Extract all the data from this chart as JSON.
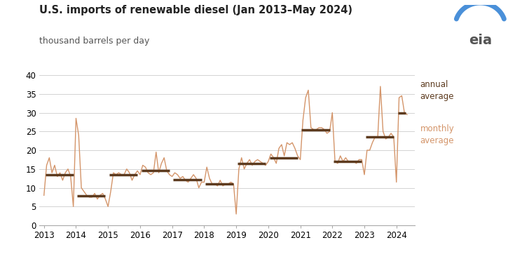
{
  "title": "U.S. imports of renewable diesel (Jan 2013–May 2024)",
  "subtitle": "thousand barrels per day",
  "line_color": "#D4956A",
  "annual_avg_color": "#5C3A1E",
  "background_color": "#FFFFFF",
  "ylim": [
    0,
    40
  ],
  "yticks": [
    0,
    5,
    10,
    15,
    20,
    25,
    30,
    35,
    40
  ],
  "xticks": [
    2013,
    2014,
    2015,
    2016,
    2017,
    2018,
    2019,
    2020,
    2021,
    2022,
    2023,
    2024
  ],
  "annual_averages": {
    "2013": 13.5,
    "2014": 7.8,
    "2015": 13.5,
    "2016": 14.5,
    "2017": 12.2,
    "2018": 11.0,
    "2019": 16.5,
    "2020": 18.0,
    "2021": 25.5,
    "2022": 17.0,
    "2023": 23.5,
    "2024": 30.0
  },
  "monthly_data": {
    "dates": [
      2013.0,
      2013.083,
      2013.167,
      2013.25,
      2013.333,
      2013.417,
      2013.5,
      2013.583,
      2013.667,
      2013.75,
      2013.833,
      2013.917,
      2014.0,
      2014.083,
      2014.167,
      2014.25,
      2014.333,
      2014.417,
      2014.5,
      2014.583,
      2014.667,
      2014.75,
      2014.833,
      2014.917,
      2015.0,
      2015.083,
      2015.167,
      2015.25,
      2015.333,
      2015.417,
      2015.5,
      2015.583,
      2015.667,
      2015.75,
      2015.833,
      2015.917,
      2016.0,
      2016.083,
      2016.167,
      2016.25,
      2016.333,
      2016.417,
      2016.5,
      2016.583,
      2016.667,
      2016.75,
      2016.833,
      2016.917,
      2017.0,
      2017.083,
      2017.167,
      2017.25,
      2017.333,
      2017.417,
      2017.5,
      2017.583,
      2017.667,
      2017.75,
      2017.833,
      2017.917,
      2018.0,
      2018.083,
      2018.167,
      2018.25,
      2018.333,
      2018.417,
      2018.5,
      2018.583,
      2018.667,
      2018.75,
      2018.833,
      2018.917,
      2019.0,
      2019.083,
      2019.167,
      2019.25,
      2019.333,
      2019.417,
      2019.5,
      2019.583,
      2019.667,
      2019.75,
      2019.833,
      2019.917,
      2020.0,
      2020.083,
      2020.167,
      2020.25,
      2020.333,
      2020.417,
      2020.5,
      2020.583,
      2020.667,
      2020.75,
      2020.833,
      2020.917,
      2021.0,
      2021.083,
      2021.167,
      2021.25,
      2021.333,
      2021.417,
      2021.5,
      2021.583,
      2021.667,
      2021.75,
      2021.833,
      2021.917,
      2022.0,
      2022.083,
      2022.167,
      2022.25,
      2022.333,
      2022.417,
      2022.5,
      2022.583,
      2022.667,
      2022.75,
      2022.833,
      2022.917,
      2023.0,
      2023.083,
      2023.167,
      2023.25,
      2023.333,
      2023.417,
      2023.5,
      2023.583,
      2023.667,
      2023.75,
      2023.833,
      2023.917,
      2024.0,
      2024.083,
      2024.167,
      2024.25,
      2024.333
    ],
    "values": [
      8.0,
      16.0,
      18.0,
      14.0,
      16.0,
      13.0,
      14.0,
      12.0,
      14.0,
      15.0,
      13.0,
      5.0,
      28.5,
      24.0,
      10.0,
      9.0,
      8.0,
      7.5,
      7.5,
      8.5,
      7.0,
      8.0,
      8.5,
      7.0,
      5.0,
      9.0,
      14.0,
      13.5,
      14.0,
      13.5,
      13.5,
      15.0,
      14.0,
      12.0,
      13.5,
      14.5,
      13.5,
      16.0,
      15.5,
      14.0,
      13.5,
      14.0,
      19.5,
      14.0,
      16.5,
      18.0,
      14.5,
      13.5,
      13.0,
      14.0,
      13.5,
      12.5,
      13.0,
      12.0,
      11.5,
      12.5,
      13.5,
      12.5,
      10.0,
      11.5,
      11.5,
      15.5,
      12.5,
      11.0,
      11.0,
      10.5,
      12.0,
      10.5,
      11.0,
      11.0,
      11.5,
      11.0,
      3.0,
      15.0,
      18.0,
      15.0,
      16.5,
      17.5,
      16.0,
      17.0,
      17.5,
      17.0,
      16.5,
      16.0,
      17.0,
      19.0,
      18.0,
      16.5,
      20.5,
      21.5,
      18.5,
      22.0,
      21.5,
      22.0,
      20.5,
      18.5,
      17.5,
      28.0,
      34.0,
      36.0,
      26.0,
      25.5,
      25.5,
      26.0,
      26.0,
      25.5,
      24.5,
      25.0,
      30.0,
      17.0,
      16.5,
      18.5,
      17.0,
      18.0,
      17.0,
      17.0,
      17.0,
      16.5,
      17.5,
      17.5,
      13.5,
      20.0,
      20.0,
      22.0,
      23.5,
      23.5,
      37.0,
      25.0,
      23.0,
      23.5,
      24.5,
      23.5,
      11.5,
      34.0,
      34.5,
      30.0,
      29.5
    ]
  }
}
